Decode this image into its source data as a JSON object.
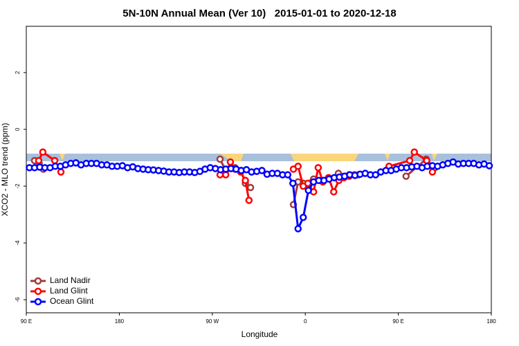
{
  "chart_data": {
    "type": "line",
    "title": "5N-10N Annual Mean (Ver 10)   2015-01-01 to 2020-12-18",
    "x_label": "Longitude",
    "y_label": "XCO2 - MLO trend (ppm)",
    "xlim": [
      90,
      540
    ],
    "ylim": [
      -6.46,
      3.63
    ],
    "xticks": [
      {
        "value": 90,
        "label": "90 E"
      },
      180,
      {
        "value": 270,
        "label": "90 W"
      },
      {
        "value": 360,
        "label": "0"
      },
      {
        "value": 450,
        "label": "90 E"
      },
      {
        "value": 540,
        "label": "180"
      }
    ],
    "yticks": [
      -6,
      -4,
      -2,
      0,
      2
    ],
    "legend": "bottom-left",
    "series": [
      {
        "name": "Land Nadir",
        "color": "#a33a3a",
        "x": [
          98,
          102.5,
          106.5,
          null,
          277.5,
          283,
          292,
          297.5,
          302,
          307,
          null,
          348.5,
          353,
          358,
          368,
          377,
          392,
          402.5,
          411.5,
          null,
          457.5,
          477,
          485.5
        ],
        "values": [
          -1.1,
          -1.2,
          -1.4,
          null,
          -1.05,
          -1.45,
          -1.35,
          -1.45,
          -1.9,
          -2.05,
          null,
          -2.65,
          -1.85,
          -1.9,
          -1.75,
          -1.85,
          -1.55,
          -1.6,
          -1.6,
          null,
          -1.65,
          -1.05,
          -1.35
        ]
      },
      {
        "name": "Land Glint",
        "color": "#ff0000",
        "x": [
          102,
          106,
          117.5,
          123.5,
          null,
          277.5,
          283,
          287.5,
          292,
          297.5,
          302,
          305.5,
          null,
          348.5,
          353,
          358,
          362.5,
          368,
          372.5,
          377,
          382.5,
          387.5,
          392.5,
          397.5,
          402.5,
          407.5,
          null,
          441,
          461,
          465.5,
          477.5,
          483
        ],
        "values": [
          -1.1,
          -0.8,
          -1.1,
          -1.5,
          null,
          -1.6,
          -1.6,
          -1.15,
          -1.4,
          -1.5,
          -1.8,
          -2.5,
          null,
          -1.4,
          -1.3,
          -2.0,
          -1.9,
          -2.2,
          -1.35,
          -1.85,
          -1.7,
          -2.2,
          -1.8,
          -1.7,
          -1.65,
          -1.6,
          null,
          -1.3,
          -1.1,
          -0.8,
          -1.1,
          -1.5
        ]
      },
      {
        "name": "Ocean Glint",
        "color": "#0000ff",
        "x": [
          93,
          98,
          103,
          108,
          113,
          118,
          123,
          128,
          133,
          138,
          143,
          148,
          153,
          158,
          163,
          168,
          173,
          178,
          183,
          188,
          193,
          198,
          203,
          208,
          213,
          218,
          223,
          228,
          233,
          238,
          243,
          248,
          253,
          258,
          263,
          268,
          273,
          278,
          283,
          288,
          293,
          298,
          303,
          308,
          313,
          318,
          323,
          328,
          333,
          338,
          343,
          348,
          353,
          358,
          363,
          368,
          373,
          378,
          383,
          388,
          393,
          398,
          403,
          408,
          413,
          418,
          423,
          428,
          433,
          438,
          443,
          448,
          453,
          458,
          463,
          468,
          473,
          478,
          483,
          488,
          493,
          498,
          503,
          508,
          513,
          518,
          523,
          528,
          533,
          538
        ],
        "values": [
          -1.35,
          -1.35,
          -1.33,
          -1.35,
          -1.35,
          -1.3,
          -1.3,
          -1.25,
          -1.2,
          -1.18,
          -1.25,
          -1.2,
          -1.2,
          -1.2,
          -1.25,
          -1.25,
          -1.3,
          -1.3,
          -1.28,
          -1.35,
          -1.32,
          -1.38,
          -1.4,
          -1.42,
          -1.43,
          -1.45,
          -1.47,
          -1.5,
          -1.5,
          -1.52,
          -1.5,
          -1.5,
          -1.52,
          -1.48,
          -1.4,
          -1.35,
          -1.38,
          -1.42,
          -1.4,
          -1.38,
          -1.4,
          -1.45,
          -1.42,
          -1.5,
          -1.48,
          -1.45,
          -1.58,
          -1.55,
          -1.55,
          -1.6,
          -1.6,
          -1.9,
          -3.5,
          -3.1,
          -2.15,
          -1.85,
          -1.8,
          -1.8,
          -1.75,
          -1.7,
          -1.68,
          -1.65,
          -1.6,
          -1.62,
          -1.58,
          -1.55,
          -1.6,
          -1.6,
          -1.5,
          -1.45,
          -1.45,
          -1.4,
          -1.35,
          -1.35,
          -1.32,
          -1.3,
          -1.35,
          -1.3,
          -1.28,
          -1.3,
          -1.25,
          -1.2,
          -1.15,
          -1.22,
          -1.2,
          -1.2,
          -1.2,
          -1.25,
          -1.22,
          -1.28
        ]
      }
    ]
  }
}
